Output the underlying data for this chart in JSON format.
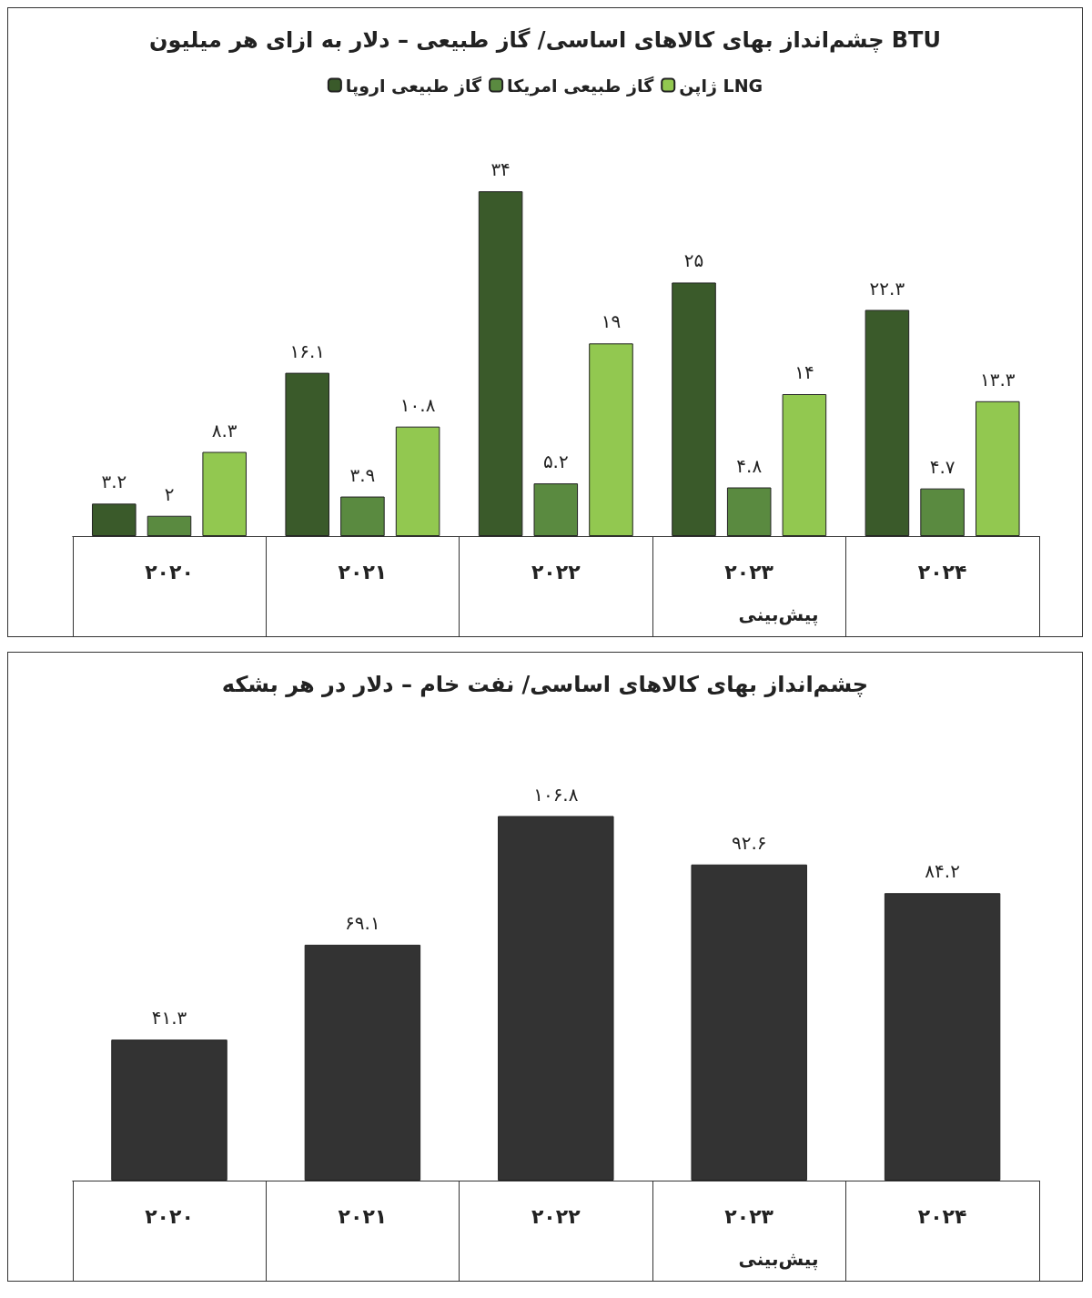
{
  "chart_data": [
    {
      "type": "bar",
      "title": "چشم‌انداز بهای کالاهای اساسی/ گاز طبیعی – دلار به ازای هر میلیون BTU",
      "categories": [
        "۲۰۲۰",
        "۲۰۲۱",
        "۲۰۲۲",
        "۲۰۲۳",
        "۲۰۲۴"
      ],
      "legend": "top",
      "annotations": [
        "پیش‌بینی"
      ],
      "series": [
        {
          "name": "گاز طبیعی اروپا",
          "color": "#3a5a2a",
          "values": [
            3.2,
            16.1,
            34,
            25,
            22.3
          ],
          "value_labels": [
            "۳.۲",
            "۱۶.۱",
            "۳۴",
            "۲۵",
            "۲۲.۳"
          ]
        },
        {
          "name": "گاز طبیعی امریکا",
          "color": "#5a8a40",
          "values": [
            2,
            3.9,
            5.2,
            4.8,
            4.7
          ],
          "value_labels": [
            "۲",
            "۳.۹",
            "۵.۲",
            "۴.۸",
            "۴.۷"
          ]
        },
        {
          "name": "ژاپن LNG",
          "color": "#92c850",
          "values": [
            8.3,
            10.8,
            19,
            14,
            13.3
          ],
          "value_labels": [
            "۸.۳",
            "۱۰.۸",
            "۱۹",
            "۱۴",
            "۱۳.۳"
          ]
        }
      ]
    },
    {
      "type": "bar",
      "title": "چشم‌انداز بهای کالاهای اساسی/ نفت خام – دلار در هر بشکه",
      "categories": [
        "۲۰۲۰",
        "۲۰۲۱",
        "۲۰۲۲",
        "۲۰۲۳",
        "۲۰۲۴"
      ],
      "annotations": [
        "پیش‌بینی"
      ],
      "series": [
        {
          "color": "#333333",
          "values": [
            41.3,
            69.1,
            106.8,
            92.6,
            84.2
          ],
          "value_labels": [
            "۴۱.۳",
            "۶۹.۱",
            "۱۰۶.۸",
            "۹۲.۶",
            "۸۴.۲"
          ]
        }
      ]
    }
  ]
}
